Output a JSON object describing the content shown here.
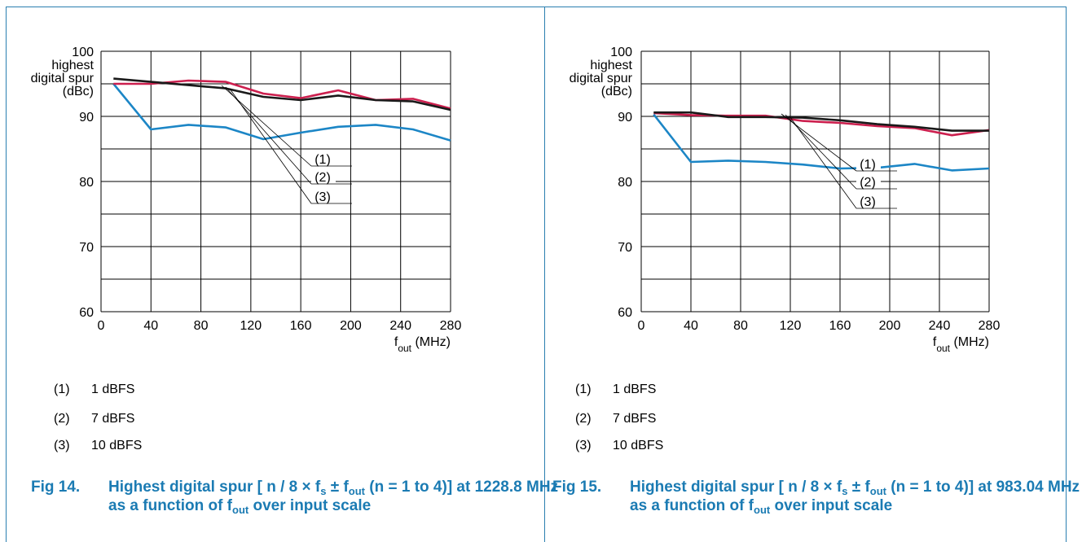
{
  "chart_data": [
    {
      "type": "line",
      "ylabel": [
        "highest",
        "digital spur",
        "(dBc)"
      ],
      "xlabel": {
        "main": "f",
        "sub": "out",
        "unit": " (MHz)"
      },
      "xlim": [
        0,
        280
      ],
      "ylim": [
        60,
        100
      ],
      "x_ticks": [
        "0",
        "40",
        "80",
        "120",
        "160",
        "200",
        "240",
        "280"
      ],
      "y_ticks": [
        "100",
        "90",
        "80",
        "70",
        "60"
      ],
      "grid": true,
      "series": [
        {
          "name": "(1)",
          "color": "#cc1f4e",
          "x": [
            10,
            40,
            70,
            100,
            130,
            160,
            190,
            220,
            250,
            280
          ],
          "y": [
            95.0,
            95.0,
            95.5,
            95.3,
            93.5,
            92.8,
            94.0,
            92.5,
            92.7,
            91.2
          ]
        },
        {
          "name": "(2)",
          "color": "#1a1a1a",
          "x": [
            10,
            40,
            70,
            100,
            130,
            160,
            190,
            220,
            250,
            280
          ],
          "y": [
            95.8,
            95.3,
            94.8,
            94.3,
            93.0,
            92.5,
            93.2,
            92.5,
            92.3,
            91.0
          ]
        },
        {
          "name": "(3)",
          "color": "#1c86c6",
          "x": [
            10,
            40,
            70,
            100,
            130,
            160,
            190,
            220,
            250,
            280
          ],
          "y": [
            95.0,
            88.0,
            88.7,
            88.3,
            86.5,
            87.5,
            88.4,
            88.7,
            88.0,
            86.3
          ]
        }
      ],
      "annotations": [
        "(1)",
        "(2)",
        "(3)"
      ]
    },
    {
      "type": "line",
      "ylabel": [
        "highest",
        "digital spur",
        "(dBc)"
      ],
      "xlabel": {
        "main": "f",
        "sub": "out",
        "unit": " (MHz)"
      },
      "xlim": [
        0,
        280
      ],
      "ylim": [
        60,
        100
      ],
      "x_ticks": [
        "0",
        "40",
        "80",
        "120",
        "160",
        "200",
        "240",
        "280"
      ],
      "y_ticks": [
        "100",
        "90",
        "80",
        "70",
        "60"
      ],
      "grid": true,
      "series": [
        {
          "name": "(1)",
          "color": "#cc1f4e",
          "x": [
            10,
            40,
            70,
            100,
            130,
            160,
            190,
            220,
            250,
            280
          ],
          "y": [
            90.5,
            90.2,
            90.1,
            90.1,
            89.3,
            89.0,
            88.5,
            88.2,
            87.1,
            87.9
          ]
        },
        {
          "name": "(2)",
          "color": "#1a1a1a",
          "x": [
            10,
            40,
            70,
            100,
            130,
            160,
            190,
            220,
            250,
            280
          ],
          "y": [
            90.6,
            90.6,
            89.9,
            89.9,
            89.8,
            89.4,
            88.8,
            88.4,
            87.8,
            87.8
          ]
        },
        {
          "name": "(3)",
          "color": "#1c86c6",
          "x": [
            10,
            40,
            70,
            100,
            130,
            160,
            190,
            220,
            250,
            280
          ],
          "y": [
            90.3,
            83.0,
            83.2,
            83.0,
            82.6,
            82.0,
            82.1,
            82.7,
            81.7,
            82.0
          ]
        }
      ],
      "annotations": [
        "(1)",
        "(2)",
        "(3)"
      ]
    }
  ],
  "legends": [
    [
      {
        "num": "(1)",
        "text": "1 dBFS"
      },
      {
        "num": "(2)",
        "text": "7 dBFS"
      },
      {
        "num": "(3)",
        "text": "10 dBFS"
      }
    ],
    [
      {
        "num": "(1)",
        "text": "1 dBFS"
      },
      {
        "num": "(2)",
        "text": "7 dBFS"
      },
      {
        "num": "(3)",
        "text": "10 dBFS"
      }
    ]
  ],
  "captions": [
    {
      "label": "Fig 14.",
      "parts": [
        "Highest digital spur [ n / 8 × f",
        "s",
        " ± f",
        "out",
        " (n = 1 to 4)] at 1228.8 MHz as a function of f",
        "out",
        " over input scale"
      ]
    },
    {
      "label": "Fig 15.",
      "parts": [
        "Highest digital spur [ n / 8 × f",
        "s",
        " ± f",
        "out",
        " (n = 1 to 4)] at 983.04 MHz as a function of f",
        "out",
        " over input scale"
      ]
    }
  ],
  "colors": {
    "frame": "#2a7fb0",
    "caption": "#1b7bb3"
  }
}
